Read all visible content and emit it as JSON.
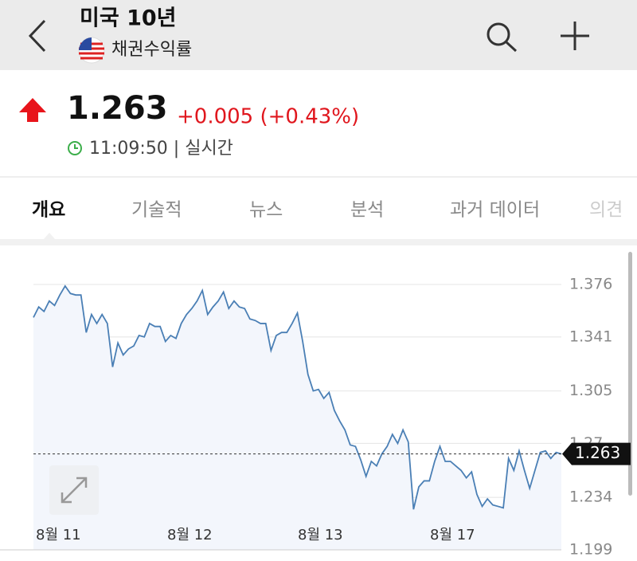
{
  "header": {
    "title": "미국 10년",
    "subtitle": "채권수익률"
  },
  "quote": {
    "price": "1.263",
    "change": "+0.005 (+0.43%)",
    "time": "11:09:50 | 실시간"
  },
  "tabs": [
    "개요",
    "기술적",
    "뉴스",
    "분석",
    "과거 데이터",
    "의견"
  ],
  "chart_data": {
    "type": "line",
    "x_labels": [
      "8월 11",
      "8월 12",
      "8월 13",
      "8월 17"
    ],
    "series": [
      {
        "color": "#4a7fb5",
        "values": [
          1.354,
          1.361,
          1.358,
          1.365,
          1.362,
          1.369,
          1.375,
          1.37,
          1.369,
          1.369,
          1.344,
          1.356,
          1.35,
          1.356,
          1.35,
          1.321,
          1.337,
          1.329,
          1.333,
          1.335,
          1.342,
          1.341,
          1.35,
          1.348,
          1.348,
          1.338,
          1.342,
          1.34,
          1.35,
          1.356,
          1.36,
          1.365,
          1.372,
          1.356,
          1.361,
          1.365,
          1.371,
          1.36,
          1.365,
          1.361,
          1.36,
          1.353,
          1.352,
          1.35,
          1.35,
          1.332,
          1.342,
          1.344,
          1.344,
          1.35,
          1.357,
          1.338,
          1.316,
          1.305,
          1.306,
          1.3,
          1.304,
          1.292,
          1.285,
          1.279,
          1.269,
          1.268,
          1.259,
          1.248,
          1.258,
          1.255,
          1.263,
          1.268,
          1.276,
          1.27,
          1.279,
          1.271,
          1.226,
          1.241,
          1.245,
          1.245,
          1.258,
          1.268,
          1.258,
          1.258,
          1.255,
          1.252,
          1.247,
          1.251,
          1.236,
          1.228,
          1.233,
          1.229,
          1.228,
          1.227,
          1.26,
          1.252,
          1.265,
          1.252,
          1.24,
          1.252,
          1.264,
          1.265,
          1.26,
          1.264,
          1.263
        ]
      }
    ],
    "current_value": 1.263,
    "ylim": [
      1.199,
      1.376
    ],
    "yticks": [
      1.376,
      1.341,
      1.305,
      1.27,
      {
        "value": 1.234,
        "label": "1.234"
      },
      1.199
    ],
    "grid": true
  }
}
